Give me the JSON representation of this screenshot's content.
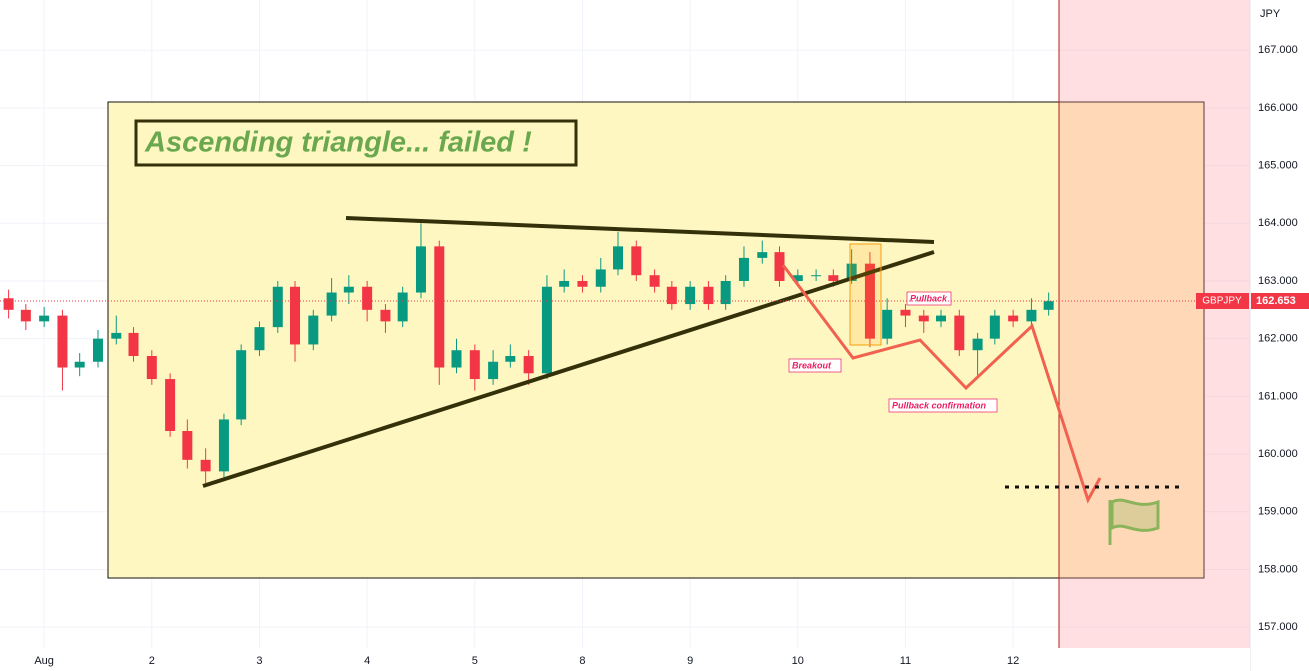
{
  "chart_data": {
    "type": "candlestick",
    "title": "Ascending triangle... failed !",
    "symbol": "GBPJPY",
    "currency": "JPY",
    "last_price": 162.653,
    "annotations": [
      "Breakout",
      "Pullback",
      "Pullback confirmation"
    ],
    "up_color": "#089981",
    "down_color": "#f23645",
    "grid": true,
    "xlim": [
      -0.41,
      11.2
    ],
    "ylim": [
      156.24,
      167.87
    ],
    "xticks": [
      {
        "value": 0,
        "label": "Aug"
      },
      {
        "value": 1,
        "label": "2"
      },
      {
        "value": 2,
        "label": "3"
      },
      {
        "value": 3,
        "label": "4"
      },
      {
        "value": 4,
        "label": "5"
      },
      {
        "value": 5,
        "label": "8"
      },
      {
        "value": 6,
        "label": "9"
      },
      {
        "value": 7,
        "label": "10"
      },
      {
        "value": 8,
        "label": "11"
      },
      {
        "value": 9,
        "label": "12"
      }
    ],
    "yticks": [
      {
        "value": 157,
        "label": "157.000"
      },
      {
        "value": 158,
        "label": "158.000"
      },
      {
        "value": 159,
        "label": "159.000"
      },
      {
        "value": 160,
        "label": "160.000"
      },
      {
        "value": 161,
        "label": "161.000"
      },
      {
        "value": 162,
        "label": "162.000"
      },
      {
        "value": 163,
        "label": "163.000"
      },
      {
        "value": 164,
        "label": "164.000"
      },
      {
        "value": 165,
        "label": "165.000"
      },
      {
        "value": 166,
        "label": "166.000"
      },
      {
        "value": 167,
        "label": "167.000"
      }
    ],
    "x": [
      -0.33,
      -0.17,
      0,
      0.17,
      0.33,
      0.5,
      0.67,
      0.83,
      1,
      1.17,
      1.33,
      1.5,
      1.67,
      1.83,
      2,
      2.17,
      2.33,
      2.5,
      2.67,
      2.83,
      3,
      3.17,
      3.33,
      3.5,
      3.67,
      3.83,
      4,
      4.17,
      4.33,
      4.5,
      4.67,
      4.83,
      5,
      5.17,
      5.33,
      5.5,
      5.67,
      5.83,
      6,
      6.17,
      6.33,
      6.5,
      6.67,
      6.83,
      7,
      7.17,
      7.33,
      7.5,
      7.67,
      7.83,
      8,
      8.17,
      8.33,
      8.5,
      8.67,
      8.83,
      9,
      9.17,
      9.33
    ],
    "open": [
      162.7,
      162.5,
      162.3,
      162.4,
      161.5,
      161.6,
      162.0,
      162.1,
      161.7,
      161.3,
      160.4,
      159.9,
      159.7,
      160.6,
      161.8,
      162.2,
      162.9,
      161.9,
      162.4,
      162.8,
      162.9,
      162.5,
      162.3,
      162.8,
      163.6,
      161.5,
      161.8,
      161.3,
      161.6,
      161.7,
      161.4,
      162.9,
      163.0,
      162.9,
      163.2,
      163.6,
      163.1,
      162.9,
      162.6,
      162.9,
      162.6,
      163.0,
      163.4,
      163.5,
      163.0,
      163.1,
      163.1,
      163.0,
      163.3,
      162.0,
      162.5,
      162.4,
      162.3,
      162.4,
      161.8,
      162.0,
      162.4,
      162.3,
      162.5
    ],
    "high": [
      162.85,
      162.6,
      162.55,
      162.5,
      161.75,
      162.15,
      162.4,
      162.2,
      161.8,
      161.4,
      160.6,
      160.1,
      160.7,
      161.9,
      162.3,
      163.0,
      163.0,
      162.5,
      163.05,
      163.1,
      163.0,
      162.6,
      162.9,
      164.0,
      163.7,
      162.0,
      161.9,
      161.8,
      161.9,
      161.8,
      163.1,
      163.2,
      163.1,
      163.4,
      163.85,
      163.7,
      163.2,
      163.0,
      163.0,
      163.0,
      163.1,
      163.6,
      163.7,
      163.6,
      163.2,
      163.2,
      163.2,
      163.55,
      163.5,
      162.7,
      162.6,
      162.5,
      162.5,
      162.5,
      162.1,
      162.5,
      162.5,
      162.7,
      162.8
    ],
    "low": [
      162.35,
      162.15,
      162.2,
      161.1,
      161.35,
      161.5,
      161.9,
      161.6,
      161.2,
      160.3,
      159.75,
      159.5,
      159.6,
      160.5,
      161.7,
      162.1,
      161.6,
      161.8,
      162.3,
      162.6,
      162.3,
      162.1,
      162.2,
      162.7,
      161.2,
      161.4,
      161.1,
      161.2,
      161.5,
      161.2,
      161.3,
      162.8,
      162.8,
      162.8,
      163.1,
      163.0,
      162.8,
      162.5,
      162.5,
      162.5,
      162.5,
      162.9,
      163.3,
      162.9,
      162.95,
      163.0,
      162.9,
      162.95,
      161.85,
      161.9,
      162.2,
      162.1,
      162.2,
      161.7,
      161.35,
      161.9,
      162.2,
      162.2,
      162.4
    ],
    "close": [
      162.5,
      162.3,
      162.4,
      161.5,
      161.6,
      162.0,
      162.1,
      161.7,
      161.3,
      160.4,
      159.9,
      159.7,
      160.6,
      161.8,
      162.2,
      162.9,
      161.9,
      162.4,
      162.8,
      162.9,
      162.5,
      162.3,
      162.8,
      163.6,
      161.5,
      161.8,
      161.3,
      161.6,
      161.7,
      161.4,
      162.9,
      163.0,
      162.9,
      163.2,
      163.6,
      163.1,
      162.9,
      162.6,
      162.9,
      162.6,
      163.0,
      163.4,
      163.5,
      163.0,
      163.1,
      163.1,
      163.0,
      163.3,
      162.0,
      162.5,
      162.4,
      162.3,
      162.4,
      161.8,
      162.0,
      162.4,
      162.3,
      162.5,
      162.65
    ]
  }
}
